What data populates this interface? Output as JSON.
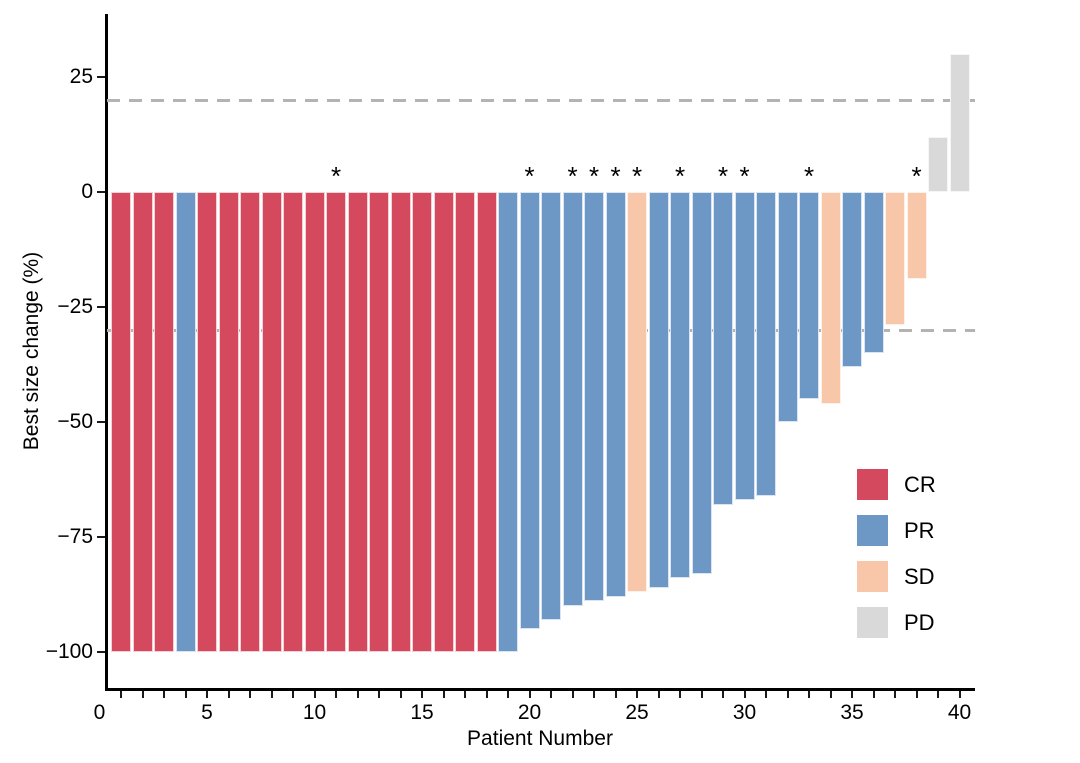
{
  "chart_data": {
    "type": "bar",
    "subtype": "waterfall",
    "title": "",
    "xlabel": "Patient Number",
    "ylabel": "Best size change (%)",
    "xlim": [
      0,
      40.7
    ],
    "ylim": [
      -107,
      38
    ],
    "x_major_ticks": [
      0,
      5,
      10,
      15,
      20,
      25,
      30,
      35,
      40
    ],
    "x_major_tick_labels": [
      "0",
      "5",
      "10",
      "15",
      "20",
      "25",
      "30",
      "35",
      "40"
    ],
    "x_minor_tick_step": 1,
    "y_ticks": [
      25,
      0,
      -25,
      -50,
      -75,
      -100
    ],
    "y_tick_labels": [
      "25",
      "0",
      "−25",
      "−50",
      "−75",
      "−100"
    ],
    "grid": false,
    "reference_lines": {
      "upper": 20,
      "lower": -30,
      "style": "dashed",
      "color": "#B3B3B3"
    },
    "annotation_marker": "*",
    "legend": {
      "position": "inside-right",
      "items": [
        {
          "label": "CR",
          "color": "#D5495E"
        },
        {
          "label": "PR",
          "color": "#6D98C6"
        },
        {
          "label": "SD",
          "color": "#F8C7AA"
        },
        {
          "label": "PD",
          "color": "#D9D9D9"
        }
      ]
    },
    "patients": [
      {
        "patient": 1,
        "value": -100,
        "response": "CR",
        "starred": false
      },
      {
        "patient": 2,
        "value": -100,
        "response": "CR",
        "starred": false
      },
      {
        "patient": 3,
        "value": -100,
        "response": "CR",
        "starred": false
      },
      {
        "patient": 4,
        "value": -100,
        "response": "PR",
        "starred": false
      },
      {
        "patient": 5,
        "value": -100,
        "response": "CR",
        "starred": false
      },
      {
        "patient": 6,
        "value": -100,
        "response": "CR",
        "starred": false
      },
      {
        "patient": 7,
        "value": -100,
        "response": "CR",
        "starred": false
      },
      {
        "patient": 8,
        "value": -100,
        "response": "CR",
        "starred": false
      },
      {
        "patient": 9,
        "value": -100,
        "response": "CR",
        "starred": false
      },
      {
        "patient": 10,
        "value": -100,
        "response": "CR",
        "starred": false
      },
      {
        "patient": 11,
        "value": -100,
        "response": "CR",
        "starred": true
      },
      {
        "patient": 12,
        "value": -100,
        "response": "CR",
        "starred": false
      },
      {
        "patient": 13,
        "value": -100,
        "response": "CR",
        "starred": false
      },
      {
        "pat": 0,
        "patient": 14,
        "value": -100,
        "response": "CR",
        "starred": false
      },
      {
        "patient": 15,
        "value": -100,
        "response": "CR",
        "starred": false
      },
      {
        "patient": 16,
        "value": -100,
        "response": "CR",
        "starred": false
      },
      {
        "patient": 17,
        "value": -100,
        "response": "CR",
        "starred": false
      },
      {
        "patient": 18,
        "value": -100,
        "response": "CR",
        "starred": false
      },
      {
        "patient": 19,
        "value": -100,
        "response": "PR",
        "starred": false
      },
      {
        "patient": 20,
        "value": -95,
        "response": "PR",
        "starred": true
      },
      {
        "patient": 21,
        "value": -93,
        "response": "PR",
        "starred": false
      },
      {
        "patient": 22,
        "value": -90,
        "response": "PR",
        "starred": true
      },
      {
        "patient": 23,
        "value": -89,
        "response": "PR",
        "starred": true
      },
      {
        "patient": 24,
        "value": -88,
        "response": "PR",
        "starred": true
      },
      {
        "patient": 25,
        "value": -87,
        "response": "SD",
        "starred": true
      },
      {
        "patient": 26,
        "value": -86,
        "response": "PR",
        "starred": false
      },
      {
        "patient": 27,
        "value": -84,
        "response": "PR",
        "starred": true
      },
      {
        "patient": 28,
        "value": -83,
        "response": "PR",
        "starred": false
      },
      {
        "patient": 29,
        "value": -68,
        "response": "PR",
        "starred": true
      },
      {
        "patient": 30,
        "value": -67,
        "response": "PR",
        "starred": true
      },
      {
        "patient": 31,
        "value": -66,
        "response": "PR",
        "starred": false
      },
      {
        "patient": 32,
        "value": -50,
        "response": "PR",
        "starred": false
      },
      {
        "patient": 33,
        "value": -45,
        "response": "PR",
        "starred": true
      },
      {
        "patient": 34,
        "value": -46,
        "response": "SD",
        "starred": false
      },
      {
        "patient": 35,
        "value": -38,
        "response": "PR",
        "starred": false
      },
      {
        "patient": 36,
        "value": -35,
        "response": "PR",
        "starred": false
      },
      {
        "patient": 37,
        "value": -29,
        "response": "SD",
        "starred": false
      },
      {
        "patient": 38,
        "value": -19,
        "response": "SD",
        "starred": true
      },
      {
        "patient": 39,
        "value": 12,
        "response": "PD",
        "starred": false
      },
      {
        "patient": 40,
        "value": 30,
        "response": "PD",
        "starred": false
      }
    ]
  }
}
